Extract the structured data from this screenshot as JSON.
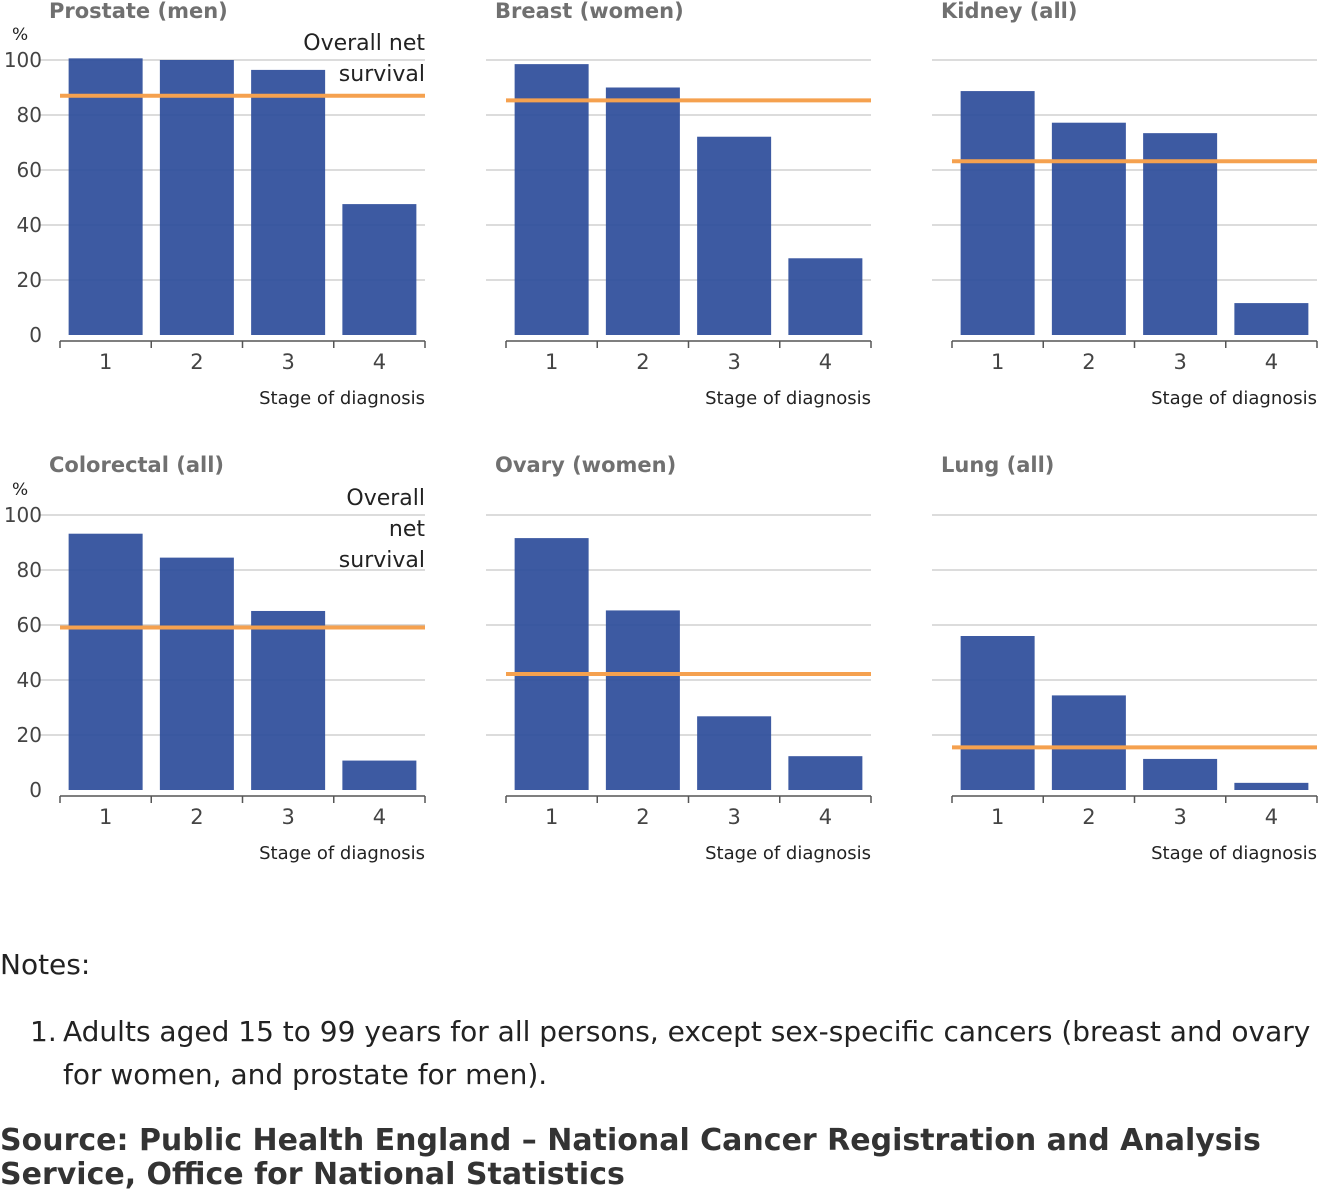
{
  "chart_data": [
    {
      "type": "bar",
      "title": "Prostate (men)",
      "categories": [
        "1",
        "2",
        "3",
        "4"
      ],
      "values": [
        100.6,
        100.0,
        96.4,
        47.6
      ],
      "overall_net_survival": 87.0,
      "overall_label": [
        "Overall net",
        "survival"
      ],
      "xlabel": "Stage of diagnosis",
      "ylabel": "%",
      "ylim": [
        0,
        100
      ],
      "yticks": [
        "0",
        "20",
        "40",
        "60",
        "80",
        "100"
      ]
    },
    {
      "type": "bar",
      "title": "Breast (women)",
      "categories": [
        "1",
        "2",
        "3",
        "4"
      ],
      "values": [
        98.5,
        90.0,
        72.1,
        27.9
      ],
      "overall_net_survival": 85.3,
      "xlabel": "Stage of diagnosis",
      "ylim": [
        0,
        100
      ]
    },
    {
      "type": "bar",
      "title": "Kidney (all)",
      "categories": [
        "1",
        "2",
        "3",
        "4"
      ],
      "values": [
        88.7,
        77.2,
        73.4,
        11.6
      ],
      "overall_net_survival": 63.2,
      "xlabel": "Stage of diagnosis",
      "ylim": [
        0,
        100
      ]
    },
    {
      "type": "bar",
      "title": "Colorectal (all)",
      "categories": [
        "1",
        "2",
        "3",
        "4"
      ],
      "values": [
        93.2,
        84.5,
        65.1,
        10.7
      ],
      "overall_net_survival": 59.1,
      "overall_label": [
        "Overall",
        "net",
        "survival"
      ],
      "xlabel": "Stage of diagnosis",
      "ylabel": "%",
      "ylim": [
        0,
        100
      ],
      "yticks": [
        "0",
        "20",
        "40",
        "60",
        "80",
        "100"
      ]
    },
    {
      "type": "bar",
      "title": "Ovary (women)",
      "categories": [
        "1",
        "2",
        "3",
        "4"
      ],
      "values": [
        91.6,
        65.3,
        26.8,
        12.3
      ],
      "overall_net_survival": 42.2,
      "xlabel": "Stage of diagnosis",
      "ylim": [
        0,
        100
      ]
    },
    {
      "type": "bar",
      "title": "Lung (all)",
      "categories": [
        "1",
        "2",
        "3",
        "4"
      ],
      "values": [
        56.0,
        34.4,
        11.3,
        2.6
      ],
      "overall_net_survival": 15.5,
      "xlabel": "Stage of diagnosis",
      "ylim": [
        0,
        100
      ]
    }
  ],
  "colors": {
    "bar": "#2e4d9b",
    "overall_line": "#f5a14f",
    "grid": "#c8c8c8",
    "axis": "#555555",
    "title": "#707070"
  },
  "notes": {
    "heading": "Notes:",
    "items": [
      {
        "number": "1.",
        "text": "Adults aged 15 to 99 years for all persons, except sex-specific cancers (breast and ovary for women, and prostate for men)."
      }
    ]
  },
  "source": "Source: Public Health England – National Cancer Registration and Analysis Service, Office for National Statistics"
}
